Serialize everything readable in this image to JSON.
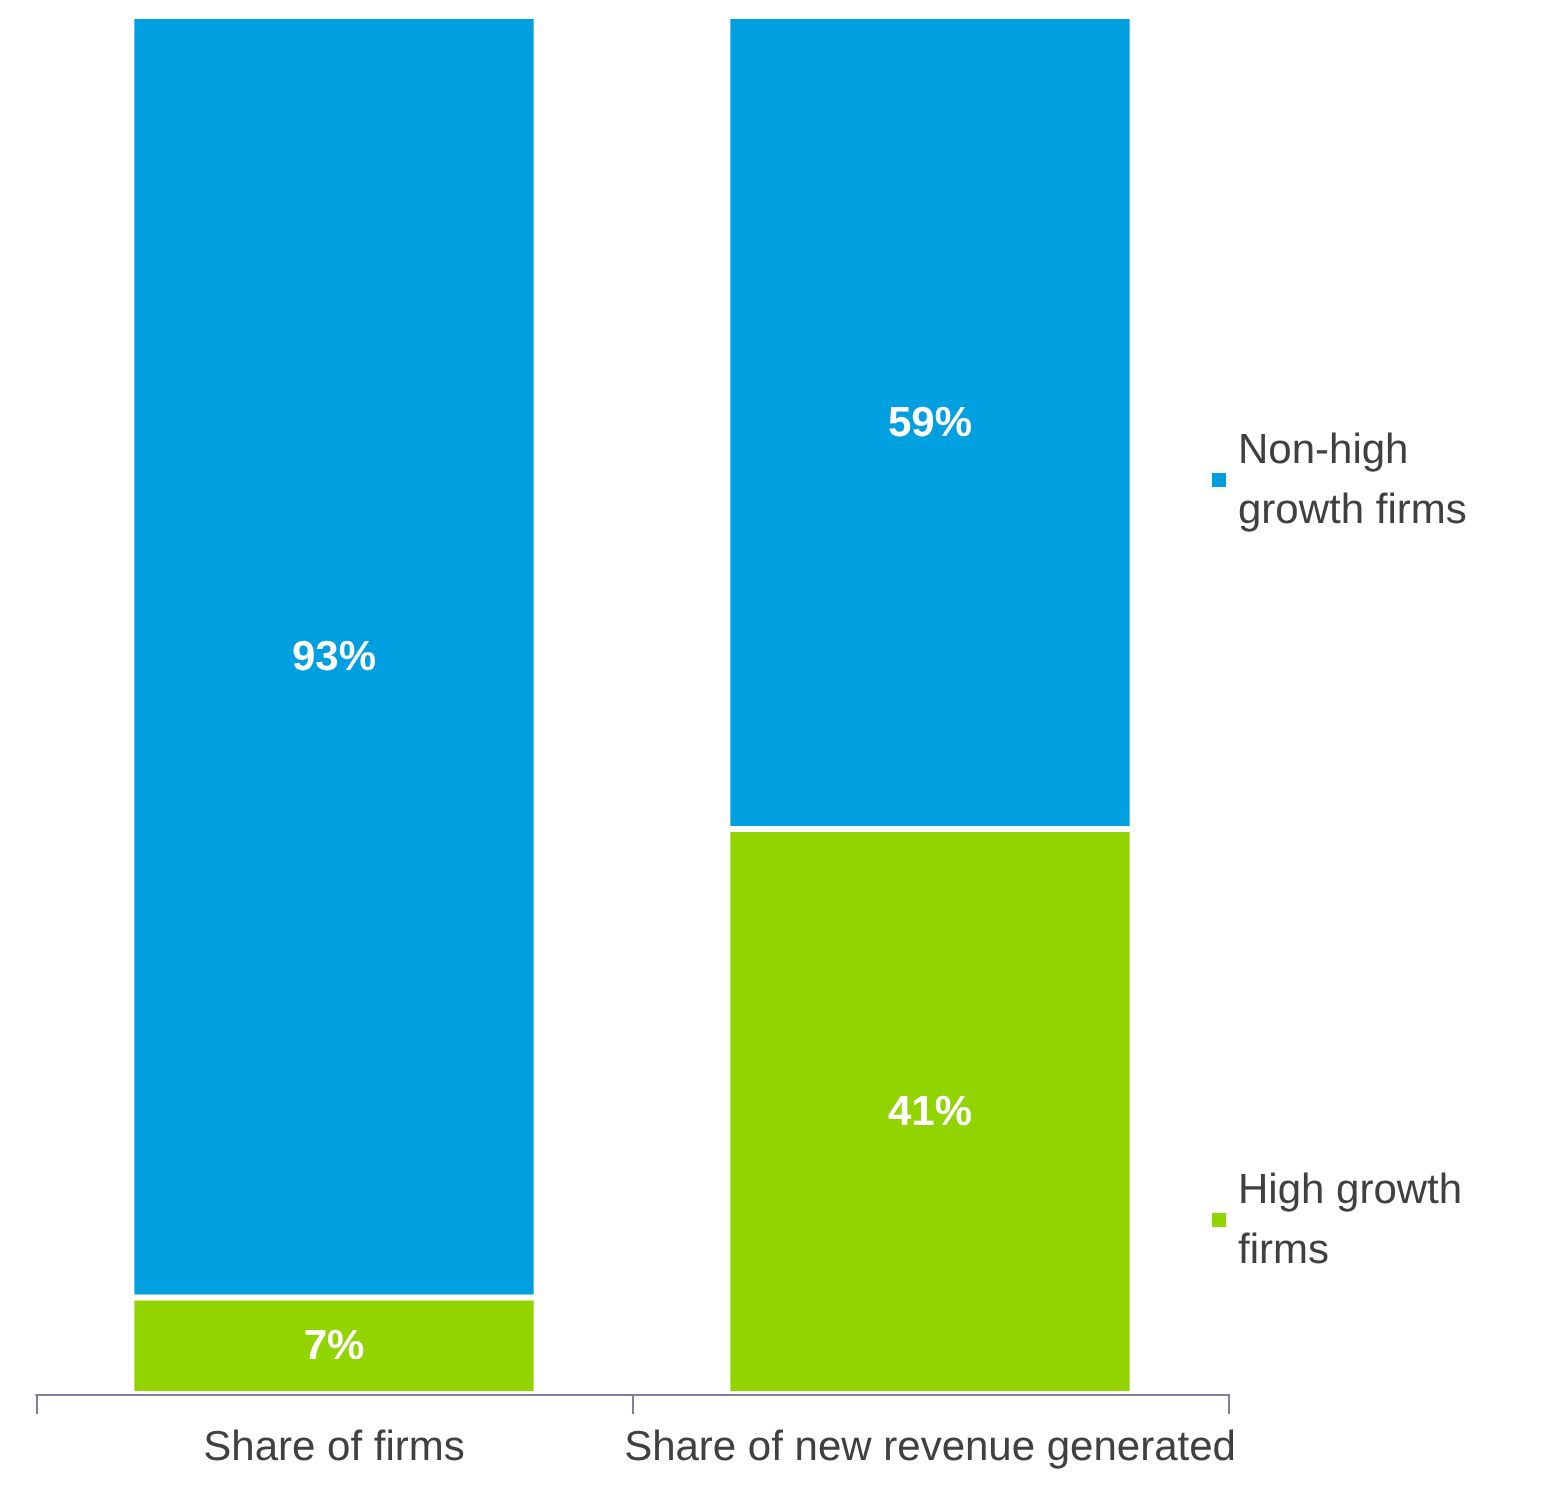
{
  "chart_data": {
    "type": "bar",
    "stacked": true,
    "categories": [
      "Share of firms",
      "Share of new revenue generated"
    ],
    "series": [
      {
        "name": "High growth firms",
        "color": "#92d400",
        "values": [
          7,
          41
        ],
        "value_labels": [
          "7%",
          "41%"
        ]
      },
      {
        "name": "Non-high growth firms",
        "color": "#009fe0",
        "values": [
          93,
          59
        ],
        "value_labels": [
          "93%",
          "59%"
        ]
      }
    ],
    "legend": "right"
  }
}
